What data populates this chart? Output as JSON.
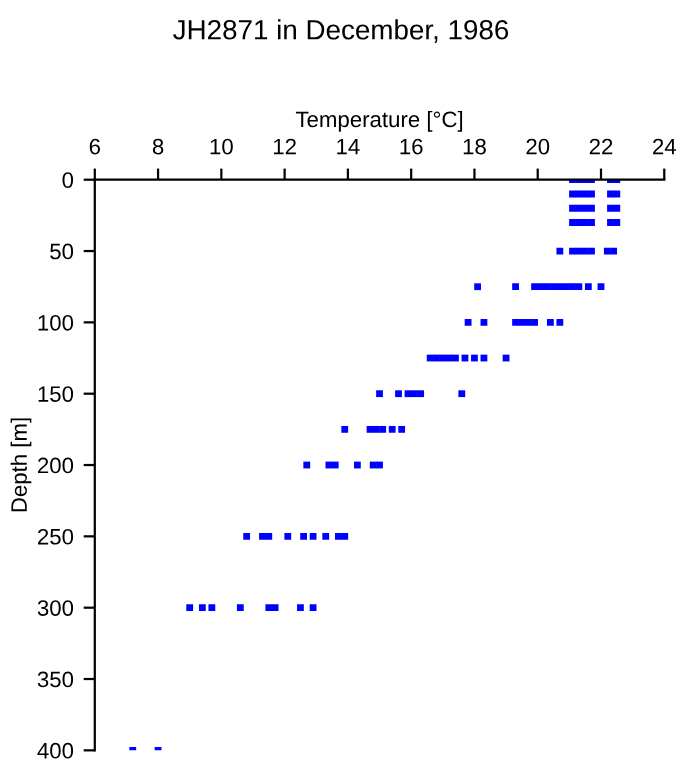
{
  "chart_data": {
    "type": "scatter",
    "title": "JH2871 in December, 1986",
    "xlabel": "Temperature [°C]",
    "ylabel": "Depth [m]",
    "x": [
      21.1,
      21.3,
      21.5,
      21.7,
      22.3,
      22.5,
      21.1,
      21.3,
      21.5,
      21.7,
      22.3,
      22.5,
      21.1,
      21.3,
      21.5,
      21.7,
      22.3,
      22.5,
      21.1,
      21.3,
      21.5,
      21.7,
      22.3,
      22.5,
      20.7,
      21.1,
      21.3,
      21.5,
      21.7,
      22.2,
      22.4,
      18.1,
      19.3,
      19.9,
      20.1,
      20.3,
      20.5,
      20.7,
      20.9,
      21.1,
      21.3,
      21.6,
      22.0,
      17.8,
      18.3,
      19.3,
      19.5,
      19.7,
      19.9,
      20.4,
      20.7,
      16.6,
      16.8,
      17.0,
      17.2,
      17.4,
      17.7,
      18.0,
      18.3,
      19.0,
      15.0,
      15.6,
      15.9,
      16.1,
      16.3,
      17.6,
      13.9,
      14.7,
      14.9,
      15.1,
      15.4,
      15.7,
      12.7,
      13.4,
      13.6,
      14.3,
      14.8,
      15.0,
      10.8,
      11.3,
      11.5,
      12.1,
      12.6,
      12.9,
      13.3,
      13.7,
      13.9,
      9.0,
      9.4,
      9.7,
      10.6,
      11.5,
      11.7,
      12.5,
      12.9,
      7.2,
      8.0
    ],
    "series": [
      {
        "color": "#0000ff",
        "values": [
          0,
          0,
          0,
          0,
          0,
          0,
          10,
          10,
          10,
          10,
          10,
          10,
          20,
          20,
          20,
          20,
          20,
          20,
          30,
          30,
          30,
          30,
          30,
          30,
          50,
          50,
          50,
          50,
          50,
          50,
          50,
          75,
          75,
          75,
          75,
          75,
          75,
          75,
          75,
          75,
          75,
          75,
          75,
          100,
          100,
          100,
          100,
          100,
          100,
          100,
          100,
          125,
          125,
          125,
          125,
          125,
          125,
          125,
          125,
          125,
          150,
          150,
          150,
          150,
          150,
          150,
          175,
          175,
          175,
          175,
          175,
          175,
          200,
          200,
          200,
          200,
          200,
          200,
          250,
          250,
          250,
          250,
          250,
          250,
          250,
          250,
          250,
          300,
          300,
          300,
          300,
          300,
          300,
          300,
          300,
          400,
          400
        ]
      }
    ],
    "marker": "square",
    "xlim": [
      6,
      24
    ],
    "xticks": [
      6,
      8,
      10,
      12,
      14,
      16,
      18,
      20,
      22,
      24
    ],
    "ylim": [
      400,
      0
    ],
    "yticks": [
      0,
      50,
      100,
      150,
      200,
      250,
      300,
      350,
      400
    ],
    "grid": false,
    "legend": false
  }
}
